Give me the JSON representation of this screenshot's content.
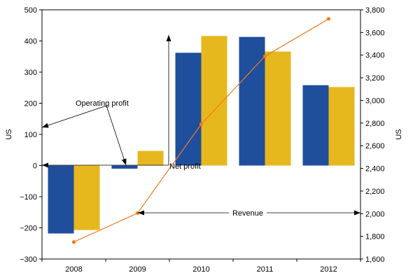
{
  "chart_data": {
    "type": "bar",
    "categories": [
      "2008",
      "2009",
      "2010",
      "2011",
      "2012"
    ],
    "series": [
      {
        "name": "Operating profit",
        "kind": "bar",
        "axis": "left",
        "color": "#1f4e9c",
        "values": [
          -218,
          -10,
          362,
          413,
          258
        ]
      },
      {
        "name": "Net profit",
        "kind": "bar",
        "axis": "left",
        "color": "#e6b81e",
        "values": [
          -207,
          47,
          416,
          366,
          252
        ]
      },
      {
        "name": "Revenue",
        "kind": "line",
        "axis": "right",
        "color": "#f07c1f",
        "values": [
          1750,
          2005,
          2790,
          3390,
          3720
        ]
      }
    ],
    "ylabel": "US",
    "y2label": "US",
    "ylim": [
      -300,
      500
    ],
    "y2lim": [
      1600,
      3800
    ],
    "yticks": [
      "500",
      "400",
      "300",
      "200",
      "100",
      "0",
      "−100",
      "−200",
      "−300"
    ],
    "y2ticks": [
      "3,800",
      "3,600",
      "3,400",
      "3,200",
      "3,000",
      "2,800",
      "2,600",
      "2,400",
      "2,200",
      "2,000",
      "1,800",
      "1,600"
    ],
    "annotations": [
      "Operating profit",
      "Net profit",
      "Revenue"
    ],
    "grid": false,
    "legend": "none"
  }
}
